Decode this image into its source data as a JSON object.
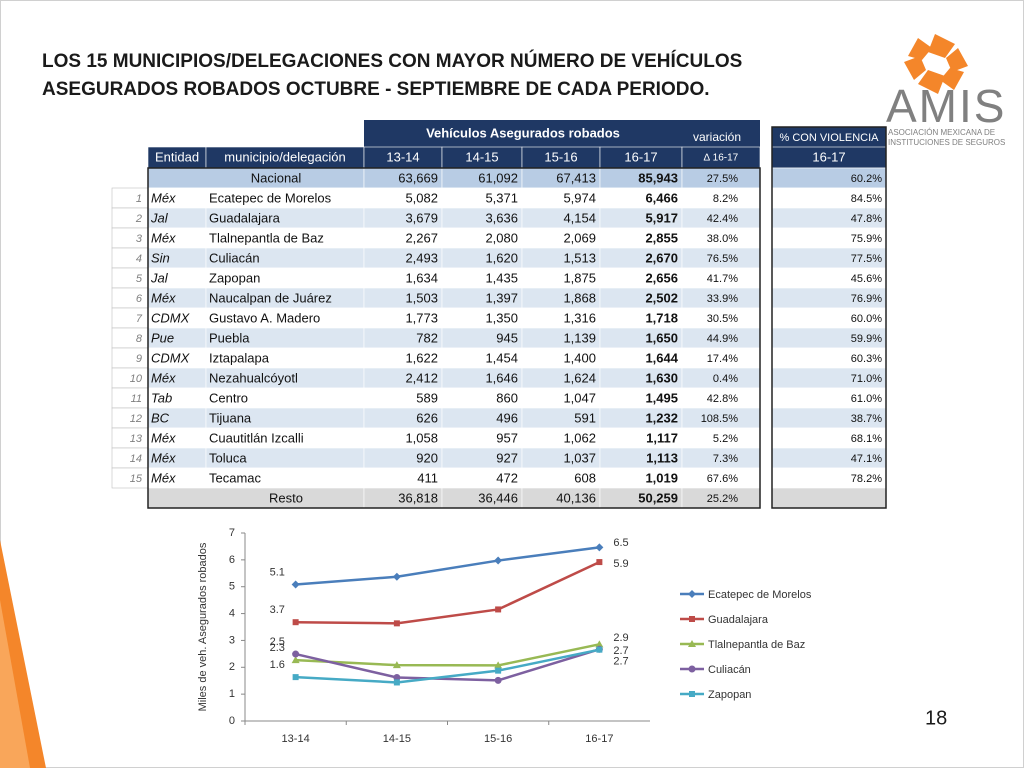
{
  "title": [
    "LOS 15 MUNICIPIOS/DELEGACIONES CON MAYOR NÚMERO DE VEHÍCULOS",
    "ASEGURADOS ROBADOS OCTUBRE - SEPTIEMBRE DE CADA PERIODO."
  ],
  "logo": {
    "name": "AMIS",
    "subtitle": [
      "ASOCIACIÓN MEXICANA DE",
      "INSTITUCIONES DE SEGUROS"
    ]
  },
  "page_number": "18",
  "table": {
    "group_headers": [
      "Vehículos Asegurados robados",
      "variación",
      "% CON VIOLENCIA"
    ],
    "columns": [
      "Entidad",
      "municipio/delegación",
      "13-14",
      "14-15",
      "15-16",
      "16-17",
      "∆ 16-17",
      "16-17"
    ],
    "national": {
      "label": "Nacional",
      "values": [
        "63,669",
        "61,092",
        "67,413",
        "85,943"
      ],
      "variation": "27.5%",
      "violence": "60.2%"
    },
    "rows": [
      [
        "1",
        "Méx",
        "Ecatepec de Morelos",
        "5,082",
        "5,371",
        "5,974",
        "6,466",
        "8.2%",
        "84.5%"
      ],
      [
        "2",
        "Jal",
        "Guadalajara",
        "3,679",
        "3,636",
        "4,154",
        "5,917",
        "42.4%",
        "47.8%"
      ],
      [
        "3",
        "Méx",
        "Tlalnepantla de Baz",
        "2,267",
        "2,080",
        "2,069",
        "2,855",
        "38.0%",
        "75.9%"
      ],
      [
        "4",
        "Sin",
        "Culiacán",
        "2,493",
        "1,620",
        "1,513",
        "2,670",
        "76.5%",
        "77.5%"
      ],
      [
        "5",
        "Jal",
        "Zapopan",
        "1,634",
        "1,435",
        "1,875",
        "2,656",
        "41.7%",
        "45.6%"
      ],
      [
        "6",
        "Méx",
        "Naucalpan de Juárez",
        "1,503",
        "1,397",
        "1,868",
        "2,502",
        "33.9%",
        "76.9%"
      ],
      [
        "7",
        "CDMX",
        "Gustavo A. Madero",
        "1,773",
        "1,350",
        "1,316",
        "1,718",
        "30.5%",
        "60.0%"
      ],
      [
        "8",
        "Pue",
        "Puebla",
        "782",
        "945",
        "1,139",
        "1,650",
        "44.9%",
        "59.9%"
      ],
      [
        "9",
        "CDMX",
        "Iztapalapa",
        "1,622",
        "1,454",
        "1,400",
        "1,644",
        "17.4%",
        "60.3%"
      ],
      [
        "10",
        "Méx",
        "Nezahualcóyotl",
        "2,412",
        "1,646",
        "1,624",
        "1,630",
        "0.4%",
        "71.0%"
      ],
      [
        "11",
        "Tab",
        "Centro",
        "589",
        "860",
        "1,047",
        "1,495",
        "42.8%",
        "61.0%"
      ],
      [
        "12",
        "BC",
        "Tijuana",
        "626",
        "496",
        "591",
        "1,232",
        "108.5%",
        "38.7%"
      ],
      [
        "13",
        "Méx",
        "Cuautitlán Izcalli",
        "1,058",
        "957",
        "1,062",
        "1,117",
        "5.2%",
        "68.1%"
      ],
      [
        "14",
        "Méx",
        "Toluca",
        "920",
        "927",
        "1,037",
        "1,113",
        "7.3%",
        "47.1%"
      ],
      [
        "15",
        "Méx",
        "Tecamac",
        "411",
        "472",
        "608",
        "1,019",
        "67.6%",
        "78.2%"
      ]
    ],
    "rest": {
      "label": "Resto",
      "values": [
        "36,818",
        "36,446",
        "40,136",
        "50,259"
      ],
      "variation": "25.2%"
    }
  },
  "chart_data": {
    "type": "line",
    "y_label": "Miles de veh. Asegurados robados",
    "categories": [
      "13-14",
      "14-15",
      "15-16",
      "16-17"
    ],
    "ylim": [
      0,
      7
    ],
    "yticks": [
      0,
      1,
      2,
      3,
      4,
      5,
      6,
      7
    ],
    "legend": "right",
    "series": [
      {
        "name": "Ecatepec de Morelos",
        "color": "#4a7ebb",
        "values": [
          5.082,
          5.371,
          5.974,
          6.466
        ],
        "value_labels": [
          "5.1",
          null,
          null,
          "6.5"
        ]
      },
      {
        "name": "Guadalajara",
        "color": "#be4b48",
        "values": [
          3.679,
          3.636,
          4.154,
          5.917
        ],
        "value_labels": [
          "3.7",
          null,
          null,
          "5.9"
        ]
      },
      {
        "name": "Tlalnepantla de Baz",
        "color": "#98b954",
        "values": [
          2.267,
          2.08,
          2.069,
          2.855
        ],
        "value_labels": [
          "2.3",
          null,
          null,
          "2.9"
        ]
      },
      {
        "name": "Culiacán",
        "color": "#7d60a0",
        "values": [
          2.493,
          1.62,
          1.513,
          2.67
        ],
        "value_labels": [
          "2.5",
          null,
          null,
          "2.7"
        ]
      },
      {
        "name": "Zapopan",
        "color": "#46aac5",
        "values": [
          1.634,
          1.435,
          1.875,
          2.656
        ],
        "value_labels": [
          "1.6",
          null,
          null,
          "2.7"
        ]
      }
    ]
  }
}
